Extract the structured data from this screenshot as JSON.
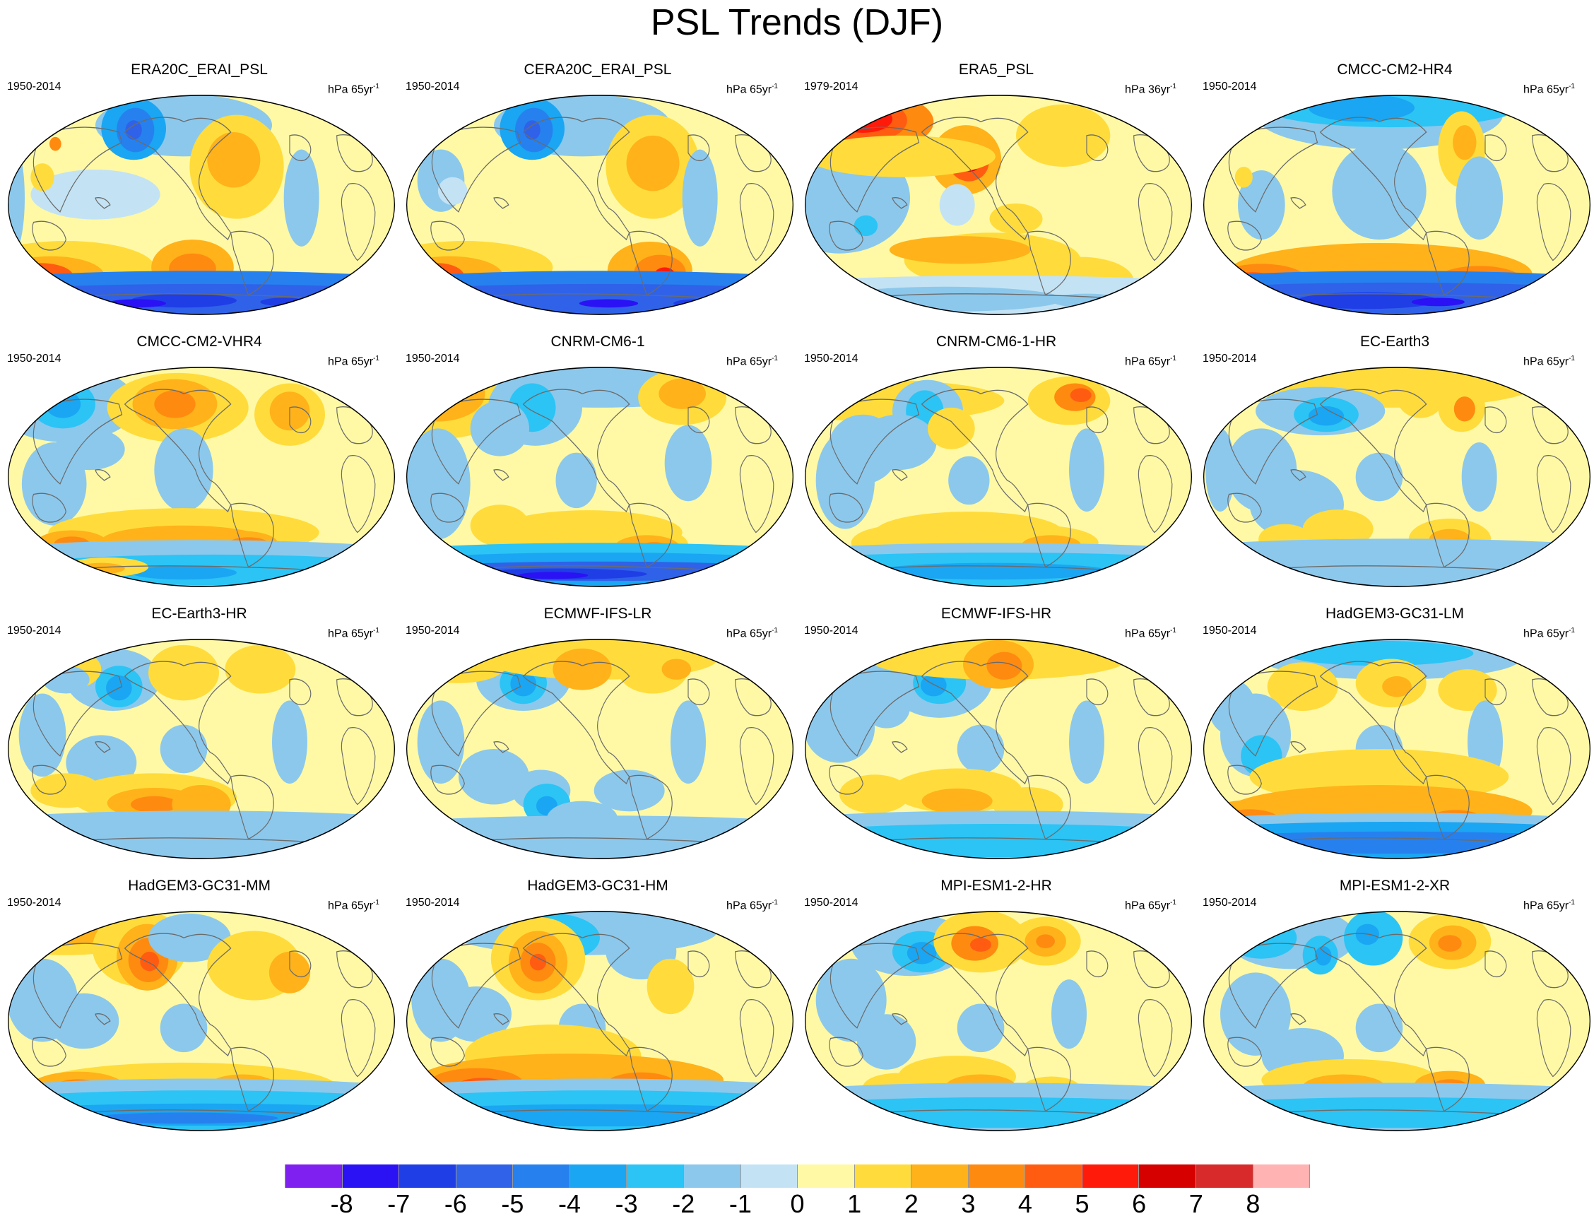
{
  "title": "PSL Trends (DJF)",
  "panels": [
    {
      "title": "ERA20C_ERAI_PSL",
      "period": "1950-2014",
      "unit": "hPa 65yr",
      "unit_exp": "-1",
      "pattern": "era20c"
    },
    {
      "title": "CERA20C_ERAI_PSL",
      "period": "1950-2014",
      "unit": "hPa 65yr",
      "unit_exp": "-1",
      "pattern": "cera20c"
    },
    {
      "title": "ERA5_PSL",
      "period": "1979-2014",
      "unit": "hPa 36yr",
      "unit_exp": "-1",
      "pattern": "era5"
    },
    {
      "title": "CMCC-CM2-HR4",
      "period": "1950-2014",
      "unit": "hPa 65yr",
      "unit_exp": "-1",
      "pattern": "cmcc_hr4"
    },
    {
      "title": "CMCC-CM2-VHR4",
      "period": "1950-2014",
      "unit": "hPa 65yr",
      "unit_exp": "-1",
      "pattern": "cmcc_vhr4"
    },
    {
      "title": "CNRM-CM6-1",
      "period": "1950-2014",
      "unit": "hPa 65yr",
      "unit_exp": "-1",
      "pattern": "cnrm"
    },
    {
      "title": "CNRM-CM6-1-HR",
      "period": "1950-2014",
      "unit": "hPa 65yr",
      "unit_exp": "-1",
      "pattern": "cnrm_hr"
    },
    {
      "title": "EC-Earth3",
      "period": "1950-2014",
      "unit": "hPa 65yr",
      "unit_exp": "-1",
      "pattern": "ecearth"
    },
    {
      "title": "EC-Earth3-HR",
      "period": "1950-2014",
      "unit": "hPa 65yr",
      "unit_exp": "-1",
      "pattern": "ecearth_hr"
    },
    {
      "title": "ECMWF-IFS-LR",
      "period": "1950-2014",
      "unit": "hPa 65yr",
      "unit_exp": "-1",
      "pattern": "ifs_lr"
    },
    {
      "title": "ECMWF-IFS-HR",
      "period": "1950-2014",
      "unit": "hPa 65yr",
      "unit_exp": "-1",
      "pattern": "ifs_hr"
    },
    {
      "title": "HadGEM3-GC31-LM",
      "period": "1950-2014",
      "unit": "hPa 65yr",
      "unit_exp": "-1",
      "pattern": "hadgem_lm"
    },
    {
      "title": "HadGEM3-GC31-MM",
      "period": "1950-2014",
      "unit": "hPa 65yr",
      "unit_exp": "-1",
      "pattern": "hadgem_mm"
    },
    {
      "title": "HadGEM3-GC31-HM",
      "period": "1950-2014",
      "unit": "hPa 65yr",
      "unit_exp": "-1",
      "pattern": "hadgem_hm"
    },
    {
      "title": "MPI-ESM1-2-HR",
      "period": "1950-2014",
      "unit": "hPa 65yr",
      "unit_exp": "-1",
      "pattern": "mpi_hr"
    },
    {
      "title": "MPI-ESM1-2-XR",
      "period": "1950-2014",
      "unit": "hPa 65yr",
      "unit_exp": "-1",
      "pattern": "mpi_xr"
    }
  ],
  "colorbar": {
    "colors": [
      "#7f1ff0",
      "#2a12f5",
      "#1f3ee6",
      "#2f62e8",
      "#2681ef",
      "#1aa6f2",
      "#2bc4f5",
      "#8cc8ec",
      "#c3e3f4",
      "#fff9a5",
      "#ffdc3b",
      "#ffb21a",
      "#ff8a10",
      "#ff5c12",
      "#ff1a0a",
      "#d60000",
      "#d82a2a",
      "#ffb3b3"
    ],
    "labels": [
      "-8",
      "-7",
      "-6",
      "-5",
      "-4",
      "-3",
      "-2",
      "-1",
      "0",
      "1",
      "2",
      "3",
      "4",
      "5",
      "6",
      "7",
      "8"
    ]
  }
}
